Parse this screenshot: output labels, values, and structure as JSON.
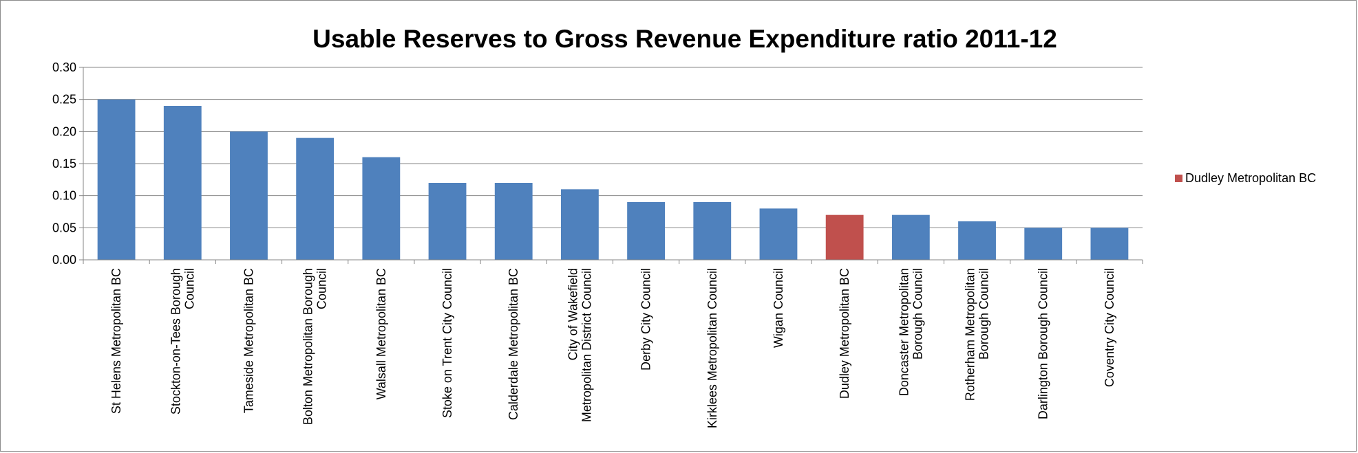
{
  "chart_data": {
    "type": "bar",
    "title": "Usable Reserves to Gross Revenue Expenditure ratio 2011-12",
    "xlabel": "",
    "ylabel": "",
    "ylim": [
      0,
      0.3
    ],
    "y_ticks": [
      "0.00",
      "0.05",
      "0.10",
      "0.15",
      "0.20",
      "0.25",
      "0.30"
    ],
    "grid": true,
    "legend_position": "right",
    "categories": [
      [
        "St Helens Metropolitan BC"
      ],
      [
        "Stockton-on-Tees Borough",
        "Council"
      ],
      [
        "Tameside Metropolitan BC"
      ],
      [
        "Bolton Metropolitan Borough",
        "Council"
      ],
      [
        "Walsall Metropolitan BC"
      ],
      [
        "Stoke on Trent City Council"
      ],
      [
        "Calderdale Metropolitan BC"
      ],
      [
        "City of Wakefield",
        "Metropolitan District Council"
      ],
      [
        "Derby City Council"
      ],
      [
        "Kirklees Metropolitan Council"
      ],
      [
        "Wigan Council"
      ],
      [
        "Dudley Metropolitan BC"
      ],
      [
        "Doncaster Metropolitan",
        "Borough Council"
      ],
      [
        "Rotherham Metropolitan",
        "Borough Council"
      ],
      [
        "Darlington Borough Council"
      ],
      [
        "Coventry City Council"
      ]
    ],
    "values": [
      0.25,
      0.24,
      0.2,
      0.19,
      0.16,
      0.12,
      0.12,
      0.11,
      0.09,
      0.09,
      0.08,
      0.07,
      0.07,
      0.06,
      0.05,
      0.05
    ],
    "highlight_index": 11,
    "colors": {
      "default": "#4f81bd",
      "highlight": "#c0504d",
      "grid": "#868686",
      "axis": "#868686"
    },
    "legend": {
      "label": "Dudley Metropolitan BC",
      "color": "#c0504d"
    }
  }
}
